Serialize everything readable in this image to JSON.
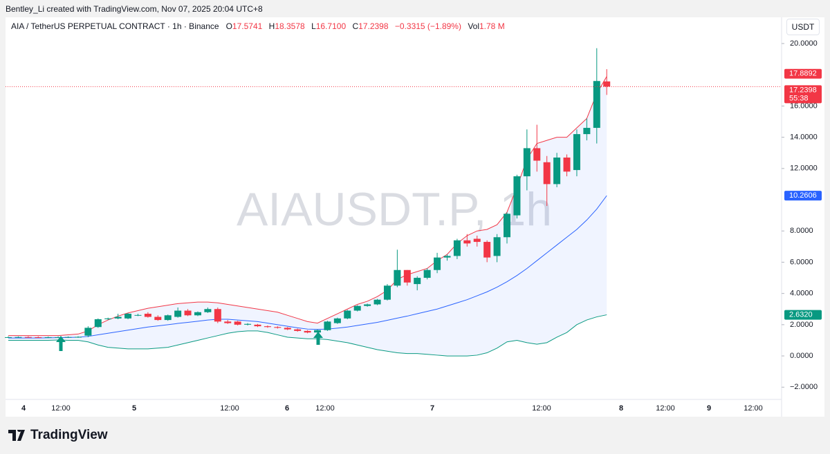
{
  "header": {
    "credit": "Bentley_Li created with TradingView.com, Nov 07, 2025 20:04 UTC+8",
    "currency": "USDT",
    "brand": "TradingView"
  },
  "chart_data": {
    "type": "candlestick",
    "title": "AIA / TetherUS PERPETUAL CONTRACT · 1h · Binance",
    "legend": [
      {
        "key": "O",
        "value": "17.5741"
      },
      {
        "key": "H",
        "value": "18.3578"
      },
      {
        "key": "L",
        "value": "16.7100"
      },
      {
        "key": "C",
        "value": "17.2398"
      }
    ],
    "change": "−0.3315 (−1.89%)",
    "volume": {
      "key": "Vol",
      "value": "1.78 M"
    },
    "watermark": "AIAUSDT.P, 1h",
    "up_color": "#089981",
    "down_color": "#f23645",
    "ylim": [
      -3.89,
      21.68
    ],
    "yticks": [
      {
        "value": 20,
        "label": "20.0000"
      },
      {
        "value": 16,
        "label": "16.0000"
      },
      {
        "value": 14,
        "label": "14.0000"
      },
      {
        "value": 12,
        "label": "12.0000"
      },
      {
        "value": 8,
        "label": "8.0000"
      },
      {
        "value": 6,
        "label": "6.0000"
      },
      {
        "value": 4,
        "label": "4.0000"
      },
      {
        "value": 2,
        "label": "2.0000"
      },
      {
        "value": 0,
        "label": "0.0000"
      },
      {
        "value": -2,
        "label": "−2.0000"
      }
    ],
    "x_labels": [
      "4",
      "12:00",
      "5",
      "12:00",
      "6",
      "12:00",
      "7",
      "12:00",
      "8",
      "12:00",
      "9",
      "12:00"
    ],
    "open": [
      1.2,
      1.2,
      1.21,
      1.2,
      1.19,
      1.2,
      1.2,
      1.21,
      1.3,
      1.85,
      2.35,
      2.4,
      2.4,
      2.6,
      2.7,
      2.5,
      2.3,
      2.5,
      2.9,
      2.6,
      2.8,
      3.0,
      2.2,
      2.2,
      2.0,
      2.0,
      1.9,
      1.85,
      1.8,
      1.7,
      1.6,
      1.5,
      1.65,
      2.1,
      2.4,
      2.9,
      3.2,
      3.3,
      3.6,
      4.5,
      5.5,
      4.6,
      5.0,
      5.5,
      6.3,
      6.4,
      7.4,
      7.5,
      7.3,
      6.4,
      7.6,
      9.0,
      11.5,
      13.3,
      12.4,
      11.0,
      12.7,
      11.9,
      14.2,
      14.6,
      17.5741
    ],
    "high": [
      1.25,
      1.25,
      1.26,
      1.25,
      1.24,
      1.25,
      1.25,
      1.26,
      1.9,
      2.4,
      2.45,
      2.7,
      2.75,
      2.7,
      2.8,
      2.6,
      2.65,
      3.1,
      3.0,
      2.85,
      3.1,
      3.1,
      2.3,
      2.25,
      2.1,
      2.05,
      1.95,
      1.9,
      1.85,
      1.75,
      1.65,
      1.7,
      2.25,
      2.45,
      2.95,
      3.25,
      3.35,
      3.65,
      4.6,
      6.8,
      5.5,
      5.1,
      5.6,
      6.6,
      6.5,
      7.5,
      7.8,
      7.7,
      7.4,
      7.8,
      9.2,
      11.6,
      14.5,
      14.8,
      12.8,
      13.0,
      12.9,
      14.5,
      15.2,
      19.7,
      18.3578
    ],
    "low": [
      1.15,
      1.15,
      1.16,
      1.15,
      1.14,
      1.15,
      1.15,
      1.16,
      1.2,
      1.8,
      2.3,
      2.35,
      2.35,
      2.55,
      2.45,
      2.25,
      2.25,
      2.45,
      2.55,
      2.55,
      2.75,
      2.1,
      2.05,
      1.95,
      1.95,
      1.85,
      1.8,
      1.75,
      1.65,
      1.55,
      1.45,
      1.45,
      1.6,
      2.05,
      2.35,
      2.85,
      3.15,
      3.25,
      3.55,
      4.4,
      4.5,
      4.2,
      4.9,
      5.3,
      6.1,
      6.2,
      7.0,
      7.0,
      6.0,
      6.0,
      7.2,
      8.8,
      10.6,
      11.8,
      9.6,
      10.8,
      11.5,
      11.5,
      13.8,
      13.6,
      16.71
    ],
    "close": [
      1.2,
      1.21,
      1.2,
      1.19,
      1.2,
      1.2,
      1.21,
      1.22,
      1.8,
      2.35,
      2.4,
      2.5,
      2.7,
      2.62,
      2.5,
      2.3,
      2.6,
      2.9,
      2.6,
      2.8,
      3.0,
      2.2,
      2.1,
      2.0,
      2.05,
      1.9,
      1.85,
      1.8,
      1.7,
      1.6,
      1.5,
      1.65,
      2.2,
      2.4,
      2.9,
      3.2,
      3.3,
      3.6,
      4.5,
      5.5,
      4.7,
      5.0,
      5.5,
      6.3,
      6.4,
      7.4,
      7.2,
      7.3,
      6.3,
      7.6,
      9.1,
      11.5,
      13.3,
      12.5,
      11.0,
      12.7,
      11.8,
      14.2,
      14.6,
      17.6,
      17.2398
    ],
    "bands": [
      {
        "name": "upper",
        "color": "#f23645",
        "values": [
          1.3,
          1.3,
          1.3,
          1.3,
          1.3,
          1.3,
          1.35,
          1.4,
          1.6,
          2.0,
          2.3,
          2.55,
          2.75,
          2.9,
          3.05,
          3.15,
          3.25,
          3.35,
          3.4,
          3.45,
          3.45,
          3.4,
          3.3,
          3.2,
          3.1,
          3.0,
          2.9,
          2.8,
          2.6,
          2.4,
          2.2,
          2.1,
          2.4,
          2.7,
          3.0,
          3.3,
          3.5,
          3.8,
          4.2,
          4.9,
          5.2,
          5.4,
          5.6,
          6.1,
          6.5,
          7.2,
          7.7,
          8.0,
          8.1,
          8.4,
          9.2,
          10.8,
          12.6,
          13.6,
          13.8,
          14.0,
          14.0,
          14.6,
          15.2,
          16.8,
          17.8892
        ]
      },
      {
        "name": "basis",
        "color": "#2962ff",
        "values": [
          1.15,
          1.15,
          1.15,
          1.15,
          1.16,
          1.17,
          1.18,
          1.2,
          1.25,
          1.35,
          1.45,
          1.55,
          1.65,
          1.75,
          1.85,
          1.92,
          2.0,
          2.08,
          2.15,
          2.22,
          2.3,
          2.35,
          2.35,
          2.3,
          2.25,
          2.2,
          2.1,
          2.0,
          1.9,
          1.8,
          1.72,
          1.7,
          1.72,
          1.78,
          1.85,
          1.95,
          2.05,
          2.15,
          2.28,
          2.42,
          2.55,
          2.7,
          2.85,
          3.0,
          3.2,
          3.4,
          3.6,
          3.85,
          4.1,
          4.4,
          4.75,
          5.15,
          5.6,
          6.1,
          6.6,
          7.1,
          7.6,
          8.1,
          8.7,
          9.4,
          10.2606
        ]
      },
      {
        "name": "lower",
        "color": "#089981",
        "values": [
          1.0,
          1.0,
          1.0,
          1.0,
          1.0,
          1.02,
          1.0,
          1.0,
          0.9,
          0.7,
          0.55,
          0.5,
          0.45,
          0.45,
          0.45,
          0.5,
          0.55,
          0.7,
          0.85,
          1.0,
          1.15,
          1.3,
          1.45,
          1.55,
          1.6,
          1.6,
          1.5,
          1.35,
          1.2,
          1.15,
          1.1,
          1.1,
          1.05,
          0.95,
          0.85,
          0.7,
          0.55,
          0.4,
          0.3,
          0.2,
          0.15,
          0.15,
          0.1,
          0.05,
          0.0,
          0.0,
          0.0,
          0.05,
          0.2,
          0.5,
          0.9,
          1.0,
          0.85,
          0.75,
          0.85,
          1.2,
          1.5,
          2.0,
          2.3,
          2.5,
          2.632
        ]
      }
    ],
    "price_labels": [
      {
        "value": 17.8892,
        "label": "17.8892",
        "color": "#f23645"
      },
      {
        "value": 17.2398,
        "label": "17.2398",
        "color": "#f23645"
      },
      {
        "value": 10.2606,
        "label": "10.2606",
        "color": "#2962ff"
      },
      {
        "value": 2.632,
        "label": "2.6320",
        "color": "#089981"
      }
    ],
    "countdown": "55:38"
  }
}
